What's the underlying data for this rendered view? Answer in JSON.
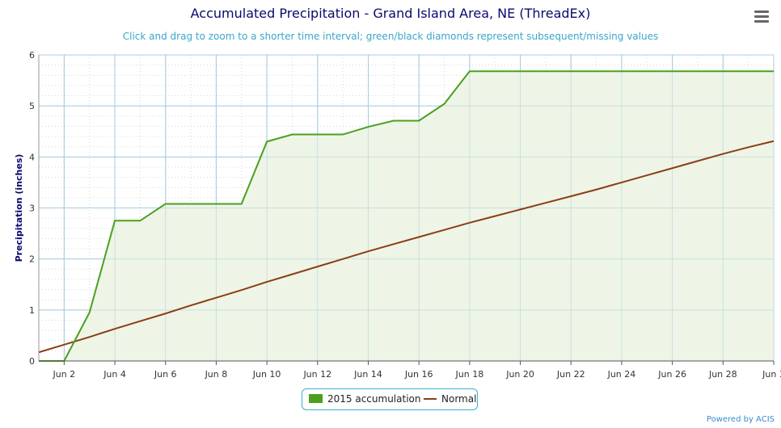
{
  "title": "Accumulated Precipitation - Grand Island Area, NE (ThreadEx)",
  "subtitle": "Click and drag to zoom to a shorter time interval; green/black diamonds represent subsequent/missing values",
  "menu_icon": "hamburger-menu-icon",
  "credits": "Powered by ACIS",
  "colors": {
    "accumulation": "#4aa01e",
    "accumulation_fill": "#eef5e6",
    "normal": "#8b3d14",
    "grid_major": "#a8cce0",
    "grid_minor": "#d6d6d6",
    "axis_title": "#0a0a6e"
  },
  "chart_data": {
    "type": "line",
    "title": "Accumulated Precipitation - Grand Island Area, NE (ThreadEx)",
    "xlabel": "",
    "ylabel": "Precipitation (inches)",
    "ylim": [
      0,
      6
    ],
    "yticks": [
      "0",
      "1",
      "2",
      "3",
      "4",
      "5",
      "6"
    ],
    "xlim": [
      "Jun 1",
      "Jun 30"
    ],
    "xtick_labels": [
      "Jun 2",
      "Jun 4",
      "Jun 6",
      "Jun 8",
      "Jun 10",
      "Jun 12",
      "Jun 14",
      "Jun 16",
      "Jun 18",
      "Jun 20",
      "Jun 22",
      "Jun 24",
      "Jun 26",
      "Jun 28",
      "Jun 3"
    ],
    "grid": true,
    "legend_position": "bottom-center",
    "series": [
      {
        "name": "2015 accumulation",
        "style": "area",
        "x": [
          "Jun 1",
          "Jun 2",
          "Jun 3",
          "Jun 4",
          "Jun 5",
          "Jun 6",
          "Jun 7",
          "Jun 8",
          "Jun 9",
          "Jun 10",
          "Jun 11",
          "Jun 12",
          "Jun 13",
          "Jun 14",
          "Jun 15",
          "Jun 16",
          "Jun 17",
          "Jun 18",
          "Jun 19",
          "Jun 20",
          "Jun 21",
          "Jun 22",
          "Jun 23",
          "Jun 24",
          "Jun 25",
          "Jun 26",
          "Jun 27",
          "Jun 28",
          "Jun 29",
          "Jun 30"
        ],
        "values": [
          0,
          0,
          0.95,
          2.75,
          2.75,
          3.08,
          3.08,
          3.08,
          3.08,
          4.3,
          4.44,
          4.44,
          4.44,
          4.59,
          4.71,
          4.71,
          5.04,
          5.68,
          5.68,
          5.68,
          5.68,
          5.68,
          5.68,
          5.68,
          5.68,
          5.68,
          5.68,
          5.68,
          5.68,
          5.68
        ]
      },
      {
        "name": "Normal",
        "style": "line",
        "x": [
          "Jun 1",
          "Jun 2",
          "Jun 3",
          "Jun 4",
          "Jun 5",
          "Jun 6",
          "Jun 7",
          "Jun 8",
          "Jun 9",
          "Jun 10",
          "Jun 11",
          "Jun 12",
          "Jun 13",
          "Jun 14",
          "Jun 15",
          "Jun 16",
          "Jun 17",
          "Jun 18",
          "Jun 19",
          "Jun 20",
          "Jun 21",
          "Jun 22",
          "Jun 23",
          "Jun 24",
          "Jun 25",
          "Jun 26",
          "Jun 27",
          "Jun 28",
          "Jun 29",
          "Jun 30"
        ],
        "values": [
          0.17,
          0.32,
          0.47,
          0.63,
          0.78,
          0.93,
          1.09,
          1.24,
          1.39,
          1.55,
          1.7,
          1.85,
          2.0,
          2.15,
          2.29,
          2.43,
          2.57,
          2.71,
          2.84,
          2.97,
          3.1,
          3.23,
          3.36,
          3.5,
          3.64,
          3.78,
          3.92,
          4.06,
          4.19,
          4.31
        ]
      }
    ]
  },
  "legend": {
    "items": [
      "2015 accumulation",
      "Normal"
    ]
  }
}
